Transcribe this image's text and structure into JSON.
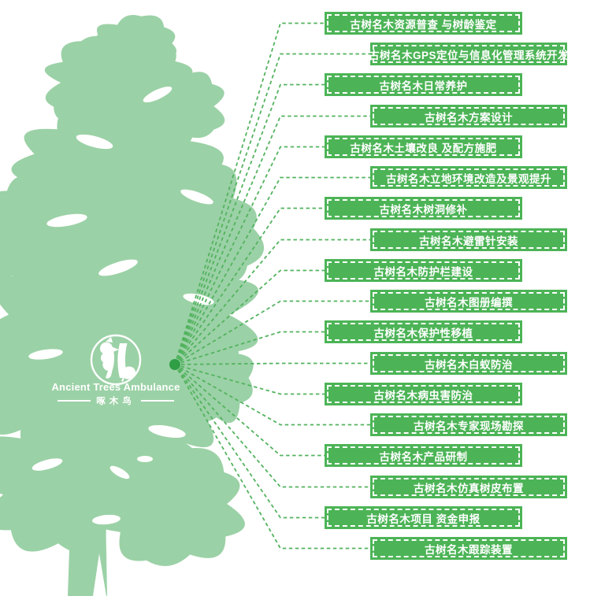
{
  "logo": {
    "title": "Ancient Trees Ambulance",
    "subtitle": "啄木鸟"
  },
  "services": [
    {
      "label": "古树名木资源普查 与树龄鉴定"
    },
    {
      "label": "古树名木GPS定位与信息化管理系统开发"
    },
    {
      "label": "古树名木日常养护"
    },
    {
      "label": "古树名木方案设计"
    },
    {
      "label": "古树名木土壤改良 及配方施肥"
    },
    {
      "label": "古树名木立地环境改造及景观提升"
    },
    {
      "label": "古树名木树洞修补"
    },
    {
      "label": "古树名木避雷针安装"
    },
    {
      "label": "古树名木防护栏建设"
    },
    {
      "label": "古树名木图册编撰"
    },
    {
      "label": "古树名木保护性移植"
    },
    {
      "label": "古树名木白蚁防治"
    },
    {
      "label": "古树名木病虫害防治"
    },
    {
      "label": "古树名木专家现场勘探"
    },
    {
      "label": "古树名木产品研制"
    },
    {
      "label": "古树名木仿真树皮布置"
    },
    {
      "label": "古树名木项目 资金申报"
    },
    {
      "label": "古树名木跟踪装置"
    }
  ],
  "colors": {
    "box_green": "#4cb456",
    "tree_green": "#9bd1a6",
    "line_green": "#53b35f",
    "dot_green": "#2f9e45",
    "text_white": "#ffffff"
  }
}
